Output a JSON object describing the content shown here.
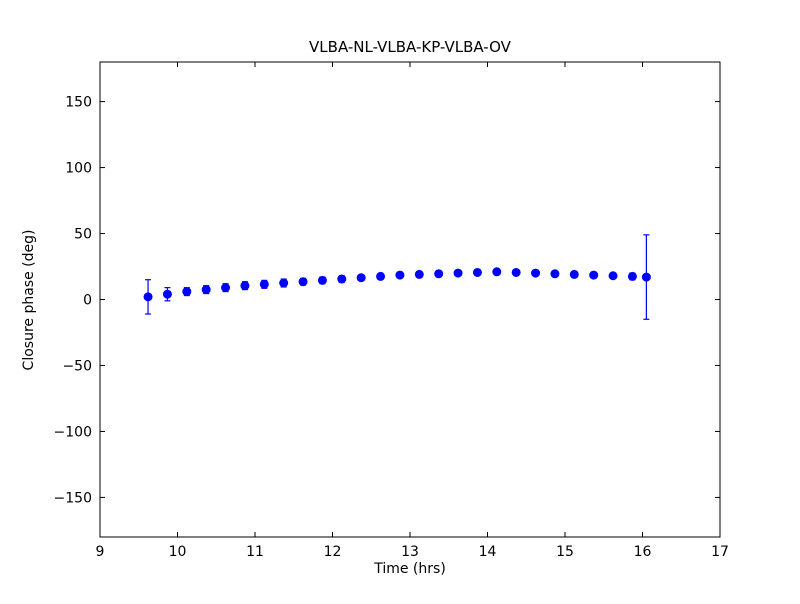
{
  "chart_data": {
    "type": "scatter",
    "title": "VLBA-NL-VLBA-KP-VLBA-OV",
    "xlabel": "Time (hrs)",
    "ylabel": "Closure phase (deg)",
    "xlim": [
      9,
      17
    ],
    "ylim": [
      -180,
      180
    ],
    "xticks": [
      9,
      10,
      11,
      12,
      13,
      14,
      15,
      16,
      17
    ],
    "yticks": [
      -150,
      -100,
      -50,
      0,
      50,
      100,
      150
    ],
    "grid": false,
    "legend": "none",
    "marker_color": "#0000ff",
    "marker_style": "filled-circle-with-errorbars",
    "series": [
      {
        "name": "closure-phase",
        "x": [
          9.62,
          9.87,
          10.12,
          10.37,
          10.62,
          10.87,
          11.12,
          11.37,
          11.62,
          11.87,
          12.12,
          12.37,
          12.62,
          12.87,
          13.12,
          13.37,
          13.62,
          13.87,
          14.12,
          14.37,
          14.62,
          14.87,
          15.12,
          15.37,
          15.62,
          15.87,
          16.05
        ],
        "y": [
          2,
          4,
          6,
          7.5,
          9,
          10.5,
          11.5,
          12.5,
          13.5,
          14.5,
          15.5,
          16.5,
          17.5,
          18.5,
          19,
          19.5,
          20,
          20.5,
          21,
          20.5,
          20,
          19.5,
          19,
          18.5,
          18,
          17.5,
          17
        ],
        "yerr": [
          13,
          5,
          3,
          3,
          3,
          3,
          3,
          3,
          2.5,
          2.5,
          2.5,
          2,
          2,
          2,
          2,
          2,
          2,
          2,
          2,
          2,
          2,
          2,
          2,
          2,
          2,
          2.5,
          32
        ]
      }
    ]
  }
}
